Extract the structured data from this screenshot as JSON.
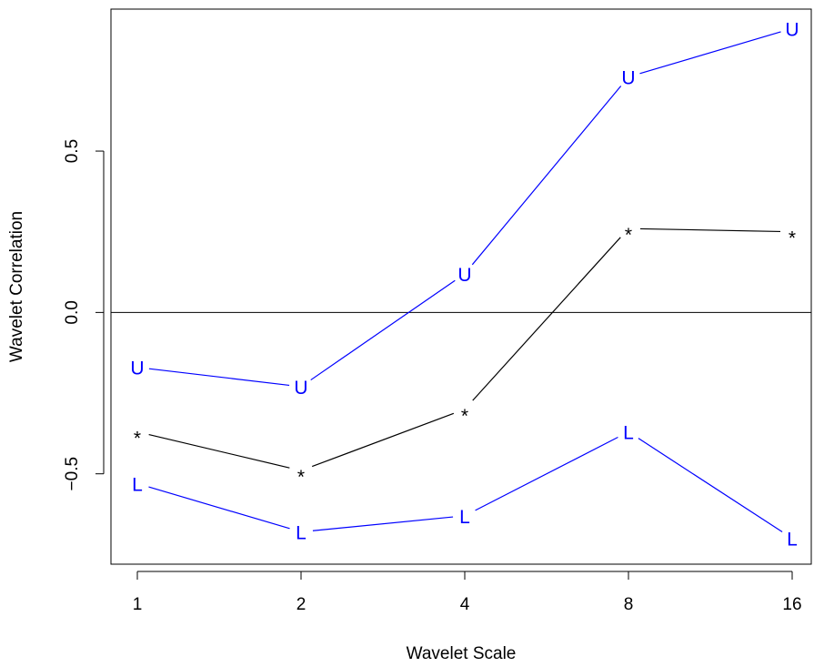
{
  "chart_data": {
    "type": "line",
    "title": "",
    "xlabel": "Wavelet Scale",
    "ylabel": "Wavelet Correlation",
    "x_scale": "log2",
    "categories": [
      "1",
      "2",
      "4",
      "8",
      "16"
    ],
    "x": [
      1,
      2,
      4,
      8,
      16
    ],
    "y_ticks": [
      -0.5,
      0.0,
      0.5
    ],
    "y_tick_labels": [
      "−0.5",
      "0.0",
      "0.5"
    ],
    "ylim": [
      -0.78,
      0.94
    ],
    "reference_line_y": 0.0,
    "grid": false,
    "legend": "none",
    "series": [
      {
        "marker": "U",
        "color": "#0000ff",
        "values": [
          -0.17,
          -0.23,
          0.12,
          0.73,
          0.88
        ]
      },
      {
        "marker": "*",
        "color": "#000000",
        "values": [
          -0.37,
          -0.49,
          -0.3,
          0.26,
          0.25
        ]
      },
      {
        "marker": "L",
        "color": "#0000ff",
        "values": [
          -0.53,
          -0.68,
          -0.63,
          -0.37,
          -0.7
        ]
      }
    ]
  }
}
